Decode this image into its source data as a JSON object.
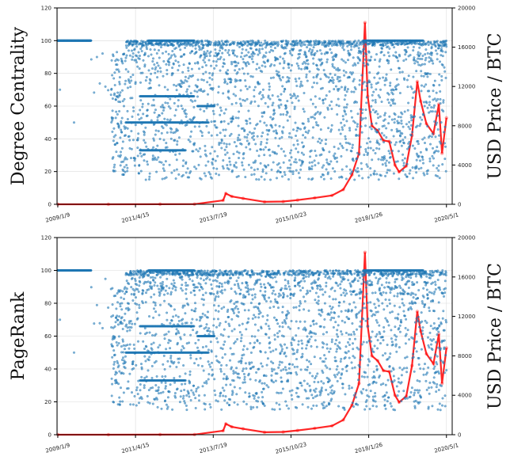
{
  "colors": {
    "rank": "#1f77b4",
    "price": "#ff0000",
    "grid": "#dcdcdc"
  },
  "chart_data": [
    {
      "type": "scatter",
      "ylabel_left": "Degree Centrality",
      "ylabel_right": "USD Price / BTC",
      "ylim_left": [
        0,
        120
      ],
      "ylim_right": [
        0,
        20000
      ],
      "yticks_left": [
        0,
        20,
        40,
        60,
        80,
        100,
        120
      ],
      "yticks_right": [
        0,
        4000,
        8000,
        12000,
        16000,
        20000
      ],
      "xlim": [
        "2009-01-01",
        "2020-07-01"
      ],
      "xtick_labels": [
        "2009/1/9",
        "2011/4/15",
        "2013/7/19",
        "2015/10/23",
        "2018/1/26",
        "2020/5/1"
      ],
      "xtick_dates": [
        "2009-01-09",
        "2011-04-15",
        "2013-07-19",
        "2015-10-23",
        "2018-01-26",
        "2020-05-01"
      ],
      "grid": true,
      "series": [
        {
          "axis": "left",
          "style": "scatter"
        },
        {
          "axis": "right",
          "style": "line-markers",
          "x": [
            "2009-01-09",
            "2010-07-01",
            "2012-01-01",
            "2013-01-01",
            "2013-11-01",
            "2013-11-30",
            "2014-02-01",
            "2014-06-01",
            "2015-01-15",
            "2015-08-01",
            "2016-01-01",
            "2016-07-01",
            "2017-01-01",
            "2017-05-01",
            "2017-08-01",
            "2017-10-15",
            "2017-12-17",
            "2018-01-15",
            "2018-03-01",
            "2018-05-01",
            "2018-07-01",
            "2018-09-01",
            "2018-11-01",
            "2018-12-15",
            "2019-03-01",
            "2019-05-01",
            "2019-06-26",
            "2019-08-01",
            "2019-10-01",
            "2019-12-15",
            "2020-02-10",
            "2020-03-15",
            "2020-05-01"
          ],
          "y": [
            0,
            0,
            10,
            15,
            400,
            1100,
            800,
            600,
            250,
            280,
            430,
            650,
            900,
            1500,
            3000,
            5200,
            18500,
            11000,
            8000,
            7500,
            6500,
            6400,
            4000,
            3300,
            3900,
            7000,
            12500,
            10500,
            8200,
            7200,
            10200,
            5200,
            8800
          ]
        }
      ]
    },
    {
      "type": "scatter",
      "ylabel_left": "PageRank",
      "ylabel_right": "USD Price / BTC",
      "ylim_left": [
        0,
        120
      ],
      "ylim_right": [
        0,
        20000
      ],
      "yticks_left": [
        0,
        20,
        40,
        60,
        80,
        100,
        120
      ],
      "yticks_right": [
        0,
        4000,
        8000,
        12000,
        16000,
        20000
      ],
      "xlim": [
        "2009-01-01",
        "2020-07-01"
      ],
      "xtick_labels": [
        "2009/1/9",
        "2011/4/15",
        "2013/7/19",
        "2015/10/23",
        "2018/1/26",
        "2020/5/1"
      ],
      "xtick_dates": [
        "2009-01-09",
        "2011-04-15",
        "2013-07-19",
        "2015-10-23",
        "2018-01-26",
        "2020-05-01"
      ],
      "grid": true,
      "series": [
        {
          "axis": "left",
          "style": "scatter"
        },
        {
          "axis": "right",
          "style": "line-markers",
          "x": [
            "2009-01-09",
            "2010-07-01",
            "2012-01-01",
            "2013-01-01",
            "2013-11-01",
            "2013-11-30",
            "2014-02-01",
            "2014-06-01",
            "2015-01-15",
            "2015-08-01",
            "2016-01-01",
            "2016-07-01",
            "2017-01-01",
            "2017-05-01",
            "2017-08-01",
            "2017-10-15",
            "2017-12-17",
            "2018-01-15",
            "2018-03-01",
            "2018-05-01",
            "2018-07-01",
            "2018-09-01",
            "2018-11-01",
            "2018-12-15",
            "2019-03-01",
            "2019-05-01",
            "2019-06-26",
            "2019-08-01",
            "2019-10-01",
            "2019-12-15",
            "2020-02-10",
            "2020-03-15",
            "2020-05-01"
          ],
          "y": [
            0,
            0,
            10,
            15,
            400,
            1100,
            800,
            600,
            250,
            280,
            430,
            650,
            900,
            1500,
            3000,
            5200,
            18500,
            11000,
            8000,
            7500,
            6500,
            6400,
            4000,
            3300,
            3900,
            7000,
            12500,
            10500,
            8200,
            7200,
            10200,
            5200,
            8800
          ]
        }
      ]
    }
  ]
}
